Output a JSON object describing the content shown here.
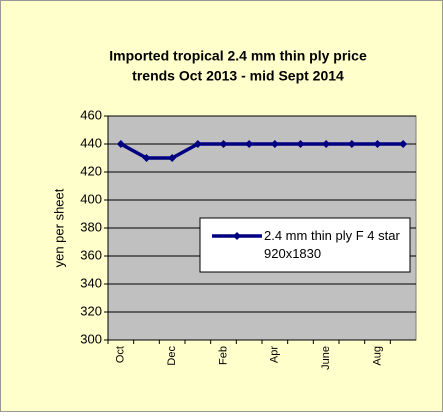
{
  "chart_data": {
    "type": "line",
    "title": [
      "Imported tropical 2.4 mm thin ply price",
      "trends  Oct  2013 - mid Sept 2014"
    ],
    "y_label": "yen per sheet",
    "categories": [
      "Oct",
      null,
      "Dec",
      null,
      "Feb",
      null,
      "Apr",
      null,
      "June",
      null,
      "Aug",
      null
    ],
    "series": [
      {
        "name": "2.4 mm thin ply F 4 star 920x1830",
        "color": "#000080",
        "values": [
          440,
          430,
          430,
          440,
          440,
          440,
          440,
          440,
          440,
          440,
          440,
          440
        ]
      }
    ],
    "ylim": [
      300,
      460
    ],
    "yticks": [
      300,
      320,
      340,
      360,
      380,
      400,
      420,
      440,
      460
    ],
    "grid": true
  }
}
